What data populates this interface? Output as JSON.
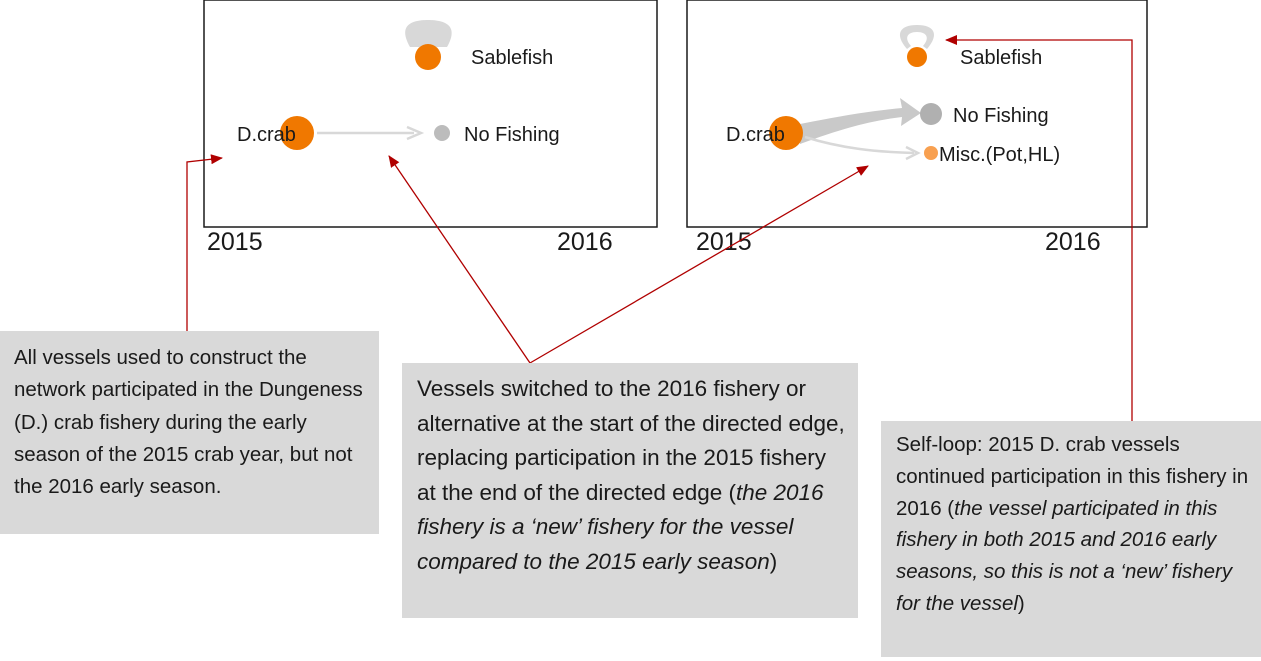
{
  "panels": [
    {
      "year_start": "2015",
      "year_end": "2016",
      "nodes": {
        "dcrab": "D.crab",
        "sablefish": "Sablefish",
        "no_fishing": "No Fishing"
      }
    },
    {
      "year_start": "2015",
      "year_end": "2016",
      "nodes": {
        "dcrab": "D.crab",
        "sablefish": "Sablefish",
        "no_fishing": "No Fishing",
        "misc": "Misc.(Pot,HL)"
      }
    }
  ],
  "notes": {
    "network": "All vessels used to construct the network participated in the Dungeness (D.) crab fishery during the early season of the 2015 crab year, but not the 2016 early season.",
    "edge_main": "Vessels switched to the 2016 fishery or alternative at the start of the directed edge, replacing participation in the 2015 fishery at the end of the directed edge (",
    "edge_italic": "the 2016 fishery is a ‘new’ fishery for the vessel compared to the 2015 early season",
    "edge_end": ")",
    "loop_main": "Self-loop: 2015 D. crab vessels continued participation in this fishery in 2016 (",
    "loop_italic": "the vessel participated in this fishery in both 2015 and 2016 early seasons, so this is not a ‘new’ fishery for the vessel",
    "loop_end": ")"
  },
  "colors": {
    "node_orange": "#f07800",
    "node_light_orange": "#f8a050",
    "node_gray": "#bcbcbc",
    "node_dark_gray": "#b0b0b0",
    "edge_light": "#d8d8d8",
    "edge_heavy": "#c9c9c9",
    "callout_arrow": "#b00000",
    "note_bg": "#d9d9d9"
  }
}
